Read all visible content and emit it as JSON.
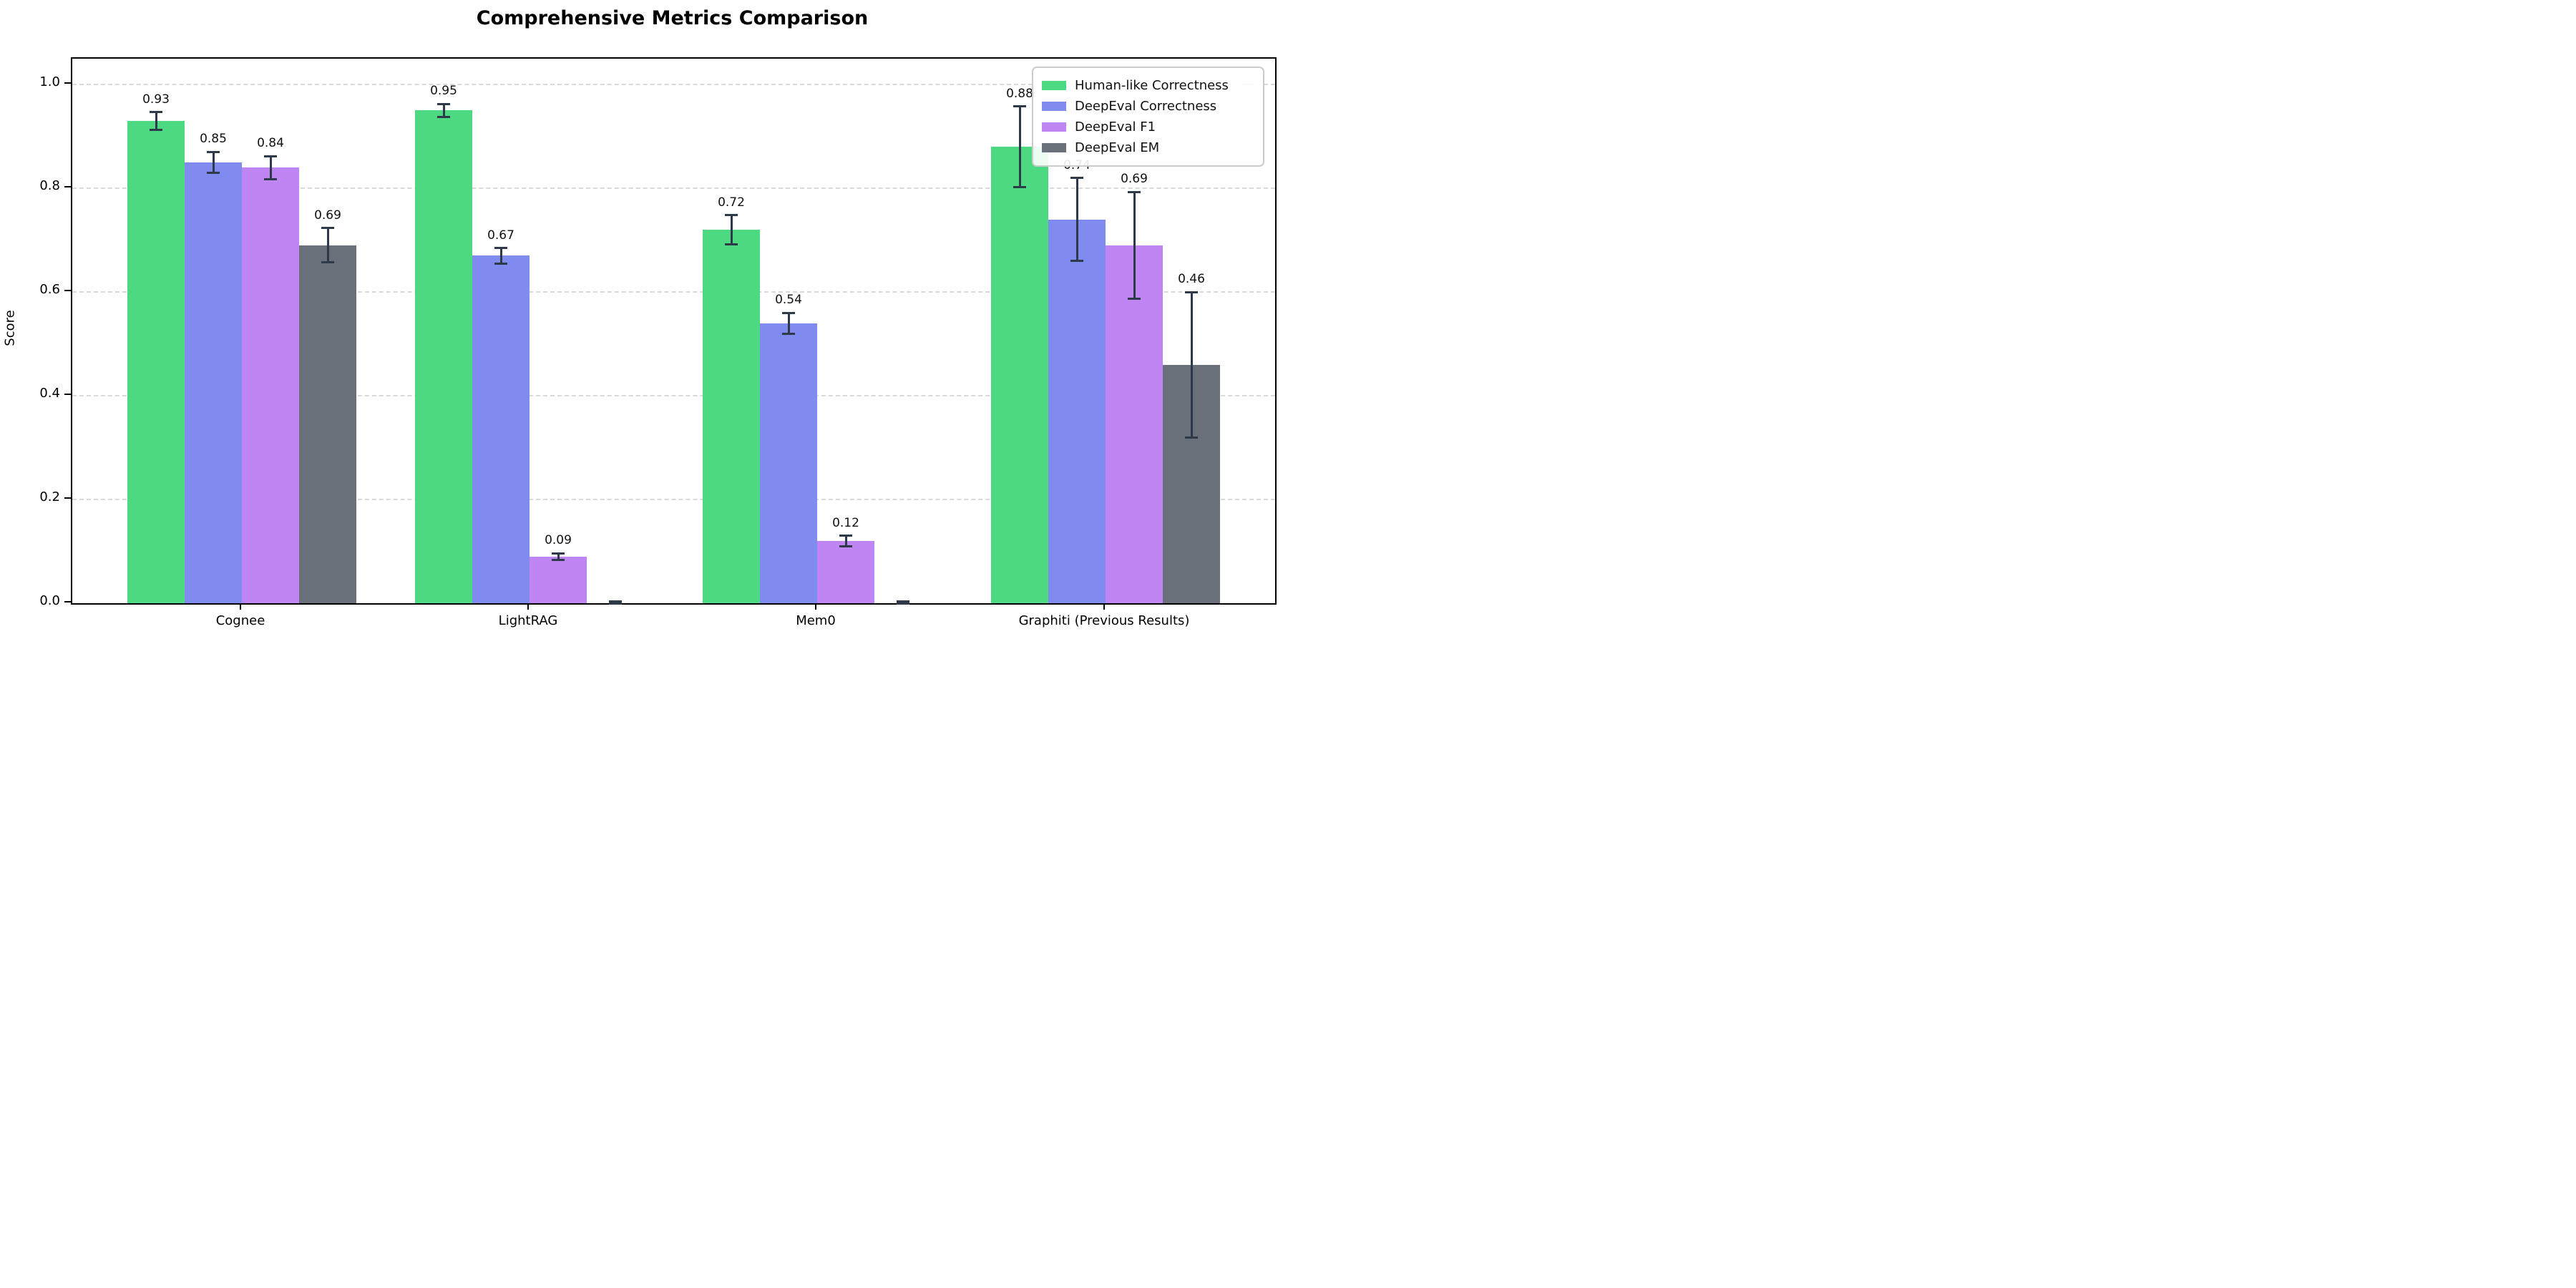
{
  "chart_data": {
    "type": "bar",
    "title": "Comprehensive Metrics Comparison",
    "ylabel": "Score",
    "xlabel": "",
    "categories": [
      "Cognee",
      "LightRAG",
      "Mem0",
      "Graphiti (Previous Results)"
    ],
    "series": [
      {
        "name": "Human-like Correctness",
        "color": "#4dd981",
        "values": [
          0.93,
          0.95,
          0.72,
          0.88
        ],
        "errors": [
          0.017,
          0.013,
          0.028,
          0.078
        ],
        "value_labels": [
          "0.93",
          "0.95",
          "0.72",
          "0.88"
        ]
      },
      {
        "name": "DeepEval Correctness",
        "color": "#808bf0",
        "values": [
          0.85,
          0.67,
          0.54,
          0.74
        ],
        "errors": [
          0.02,
          0.015,
          0.02,
          0.08
        ],
        "value_labels": [
          "0.85",
          "0.67",
          "0.54",
          "0.74"
        ]
      },
      {
        "name": "DeepEval F1",
        "color": "#bf85f3",
        "values": [
          0.84,
          0.09,
          0.12,
          0.69
        ],
        "errors": [
          0.022,
          0.006,
          0.01,
          0.103
        ],
        "value_labels": [
          "0.84",
          "0.09",
          "0.12",
          "0.69"
        ]
      },
      {
        "name": "DeepEval EM",
        "color": "#6a7079",
        "values": [
          0.69,
          0.0,
          0.0,
          0.46
        ],
        "errors": [
          0.033,
          0.003,
          0.003,
          0.14
        ],
        "value_labels": [
          "0.69",
          null,
          null,
          "0.46"
        ]
      }
    ],
    "y_ticks": [
      {
        "label": "0.0",
        "value": 0.0
      },
      {
        "label": "0.2",
        "value": 0.2
      },
      {
        "label": "0.4",
        "value": 0.4
      },
      {
        "label": "0.6",
        "value": 0.6
      },
      {
        "label": "0.8",
        "value": 0.8
      },
      {
        "label": "1.0",
        "value": 1.0
      }
    ],
    "ylim": [
      0,
      1.05
    ],
    "grid": {
      "axis": "y",
      "style": "dashed",
      "color": "#d9d9d9"
    },
    "legend_position": "upper right",
    "error_bar_color": "#2e3a4a",
    "axis_color": "#000000",
    "background_color": "#ffffff"
  }
}
